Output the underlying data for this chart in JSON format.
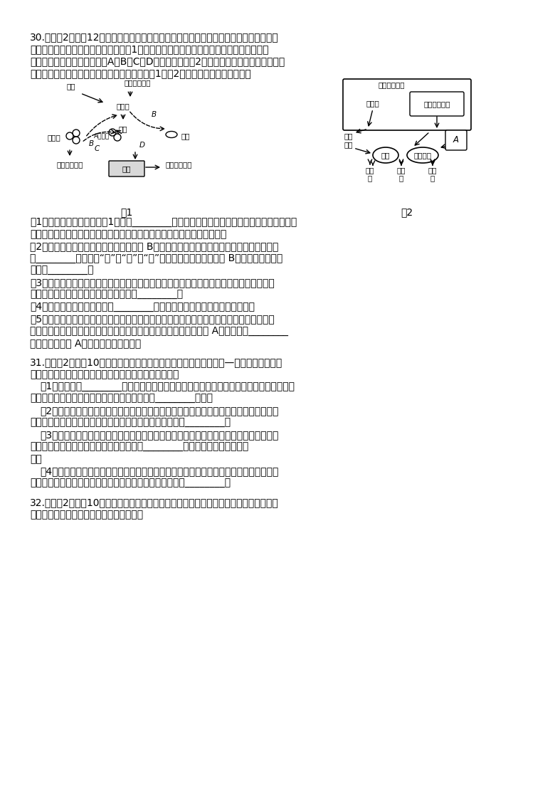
{
  "background_color": "#ffffff",
  "page_width": 7.8,
  "page_height": 11.03,
  "question30_header": "30.（每割2分，入12分）人体内环境的稳态是机体进行正常生命活动的必要条件，维持人",
  "question30_line2": "体内环境稳态的机制是相当复杂的。图1表示人体血糖浓度发生变化和人体受寒冷刺激后的",
  "question30_line3": "部分调节过程的示意图（其中A、B、C、D表示激素），图2表示神经系统对内分泌功能的三",
  "question30_line4": "种调节方式（分别标记为甲、乙、丙），结合图1、图2所示，分析回答下列问题。",
  "fig1_label": "图1",
  "fig2_label": "图2",
  "q30_1": "（1）人体在寒冷环境下，图1中激素________（填字母）的分泌量明显增加，以增加产热量，",
  "q30_1b": "同时机体还可以通过皮肤血管收缩，减少皮肤的血流量等变化以减少散热。",
  "q30_2a": "（2）血糖升高，一方面可以直接刺激胰岛 B细胞，引起胰岛素分泌增加；另一方面也可以通",
  "q30_2b": "过________模式（填“甲”或“乙”或“丙”）调节分泌量，此时胰岛 B细胞属于反射弧结",
  "q30_2c": "构中的________。",
  "q30_3a": "（3）若甲模式中，靶腺为卵巢，则女性排卵前性激素的含量逐渐升高，进而影响下丘脑和垂",
  "q30_3b": "体中某些激素的分泌，这种调节机制称为________。",
  "q30_4": "（4）当人体内细胞外液渗透压________时，抗利尿激素的合成和分泌量增加。",
  "q30_5a": "（5）人在剧烈运动时，交感神经的作用加强，使心跳和血液循环加快，以适应人体对物质和",
  "q30_5b": "能量的需求。在此过程中，交感神经末梢释放去甲肾上腺素，与胰岛 A细胞膜上的________",
  "q30_5c": "结合，促进胰岛 A细胞分泌胰高血糖素。",
  "q31_header": "31.（每割2分，入10分）我省甘南地区生活着一种像鼠又像兔的动物—鼠兔。鼠兔属于兔",
  "q31_line2": "目鼠兔科，对草原生态系统有重要作用。回答下列问题：",
  "q31_1a": "（1）可以采用________法来调查鼠兔种群密度。鼠兔通过打洞给草原松土，使更多水分和",
  "q31_1b": "营养物质可以被草原植被吸收，这体现了鼠兔的________价值。",
  "q31_2a": "（2）有些鸟类会利用鼠兔的洞穴来蹺避恶劣天气，作为回报，小鸟们若发现附近有鹰、雕",
  "q31_2b": "等猛禽时，会通过鸣叫为鼠兔示警。这种传递信息的类型为________。",
  "q31_3a": "（3）从能量流动的角度分析，鼠兔摄食的青草中的能量一部分流向肠道微生物或随粪便流",
  "q31_3b": "向分解者；另一部分被鼠兔同化，其中用于________的能量可以流向下一营养",
  "q31_3c": "级。",
  "q31_4a": "（4）鼠兔盲肠中的多种微生物对难消化的植物多糖的发酵提供了有利条件，并确保了鼠兔",
  "q31_4b": "对摄食的大量草的消化和降解，这些微生物与鼠兔的关系是________。",
  "q32_header": "32.（每割2分，入10分）图一表示某自花传粉植物的花色遗传情况，图二为基因控制该植",
  "q32_line2": "物花色性状方式的图解，请回答下列问题："
}
